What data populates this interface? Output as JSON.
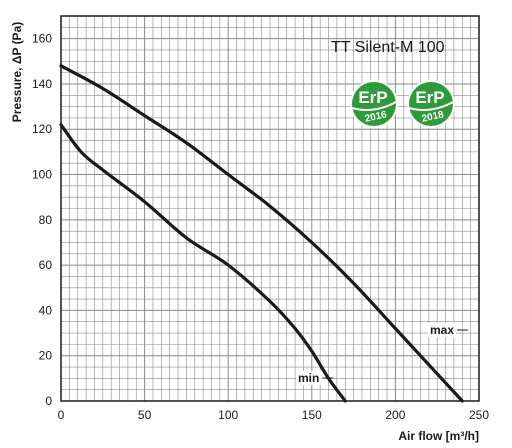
{
  "chart_data": {
    "type": "line",
    "title": "TT Silent-M 100",
    "xlabel": "Air flow [m³/h]",
    "ylabel": "Pressure, ΔP (Pa)",
    "xlim": [
      0,
      250
    ],
    "ylim": [
      0,
      170
    ],
    "x_ticks": [
      0,
      50,
      100,
      150,
      200,
      250
    ],
    "y_ticks": [
      0,
      20,
      40,
      60,
      80,
      100,
      120,
      140,
      160
    ],
    "grid": true,
    "series": [
      {
        "name": "max",
        "x": [
          0,
          25,
          50,
          75,
          100,
          125,
          150,
          175,
          200,
          225,
          240
        ],
        "y": [
          148,
          138,
          126,
          114,
          100,
          86,
          70,
          52,
          32,
          12,
          0
        ]
      },
      {
        "name": "min",
        "x": [
          0,
          12,
          25,
          50,
          75,
          100,
          125,
          140,
          150,
          160,
          170
        ],
        "y": [
          122,
          110,
          102,
          88,
          72,
          60,
          44,
          32,
          22,
          10,
          0
        ]
      }
    ],
    "badges": [
      {
        "top": "ErP",
        "bottom": "2016",
        "color": "#2e9a3a"
      },
      {
        "top": "ErP",
        "bottom": "2018",
        "color": "#2e9a3a"
      }
    ]
  }
}
